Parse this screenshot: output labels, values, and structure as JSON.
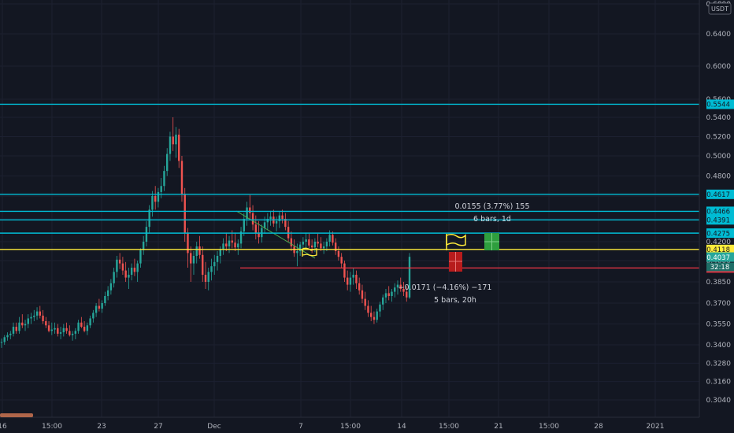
{
  "currency_badge": "USDT",
  "chart_data": {
    "type": "candlestick",
    "y_ticks": [
      0.68,
      0.64,
      0.6,
      0.56,
      0.54,
      0.52,
      0.5,
      0.48,
      0.46,
      0.44,
      0.42,
      0.4,
      0.385,
      0.37,
      0.355,
      0.34,
      0.328,
      0.316,
      0.304
    ],
    "y_tick_labels": [
      "0.6800",
      "0.6400",
      "0.6000",
      "0.5600",
      "0.5400",
      "0.5200",
      "0.5000",
      "0.4800",
      "0.4600",
      "0.4400",
      "0.4200",
      "0.4000",
      "0.3850",
      "0.3700",
      "0.3550",
      "0.3400",
      "0.3280",
      "0.3160",
      "0.3040"
    ],
    "x_ticks": [
      "16",
      "15:00",
      "23",
      "27",
      "Dec",
      "7",
      "15:00",
      "14",
      "15:00",
      "21",
      "15:00",
      "28",
      "2021"
    ],
    "horizontal_levels": [
      {
        "value": 0.5544,
        "label": "0.5544",
        "color": "#00bcd4"
      },
      {
        "value": 0.4617,
        "label": "0.4617",
        "color": "#00bcd4"
      },
      {
        "value": 0.4466,
        "label": "0.4466",
        "color": "#00bcd4"
      },
      {
        "value": 0.4391,
        "label": "0.4391",
        "color": "#00bcd4"
      },
      {
        "value": 0.4275,
        "label": "0.4275",
        "color": "#00bcd4"
      },
      {
        "value": 0.4118,
        "label": "0.4118",
        "color": "#ffeb3b"
      },
      {
        "value": 0.3948,
        "label": "0.3948",
        "color": "#f23645"
      }
    ],
    "current_price": {
      "value": 0.4037,
      "label": "0.4037",
      "countdown": "32:18",
      "color": "#26a69a"
    },
    "annotations": [
      {
        "line1": "0.0155 (3.77%) 155",
        "line2": "6 bars, 1d"
      },
      {
        "line1": "−0.0171 (−4.16%) −171",
        "line2": "5 bars, 20h"
      }
    ],
    "candles": [
      [
        0.3415,
        0.3445,
        0.338,
        0.342
      ],
      [
        0.342,
        0.347,
        0.34,
        0.3455
      ],
      [
        0.3455,
        0.349,
        0.343,
        0.347
      ],
      [
        0.347,
        0.35,
        0.344,
        0.348
      ],
      [
        0.348,
        0.356,
        0.346,
        0.353
      ],
      [
        0.353,
        0.356,
        0.348,
        0.35
      ],
      [
        0.35,
        0.36,
        0.348,
        0.356
      ],
      [
        0.356,
        0.362,
        0.352,
        0.354
      ],
      [
        0.354,
        0.358,
        0.35,
        0.355
      ],
      [
        0.355,
        0.362,
        0.352,
        0.359
      ],
      [
        0.359,
        0.363,
        0.355,
        0.36
      ],
      [
        0.36,
        0.365,
        0.357,
        0.361
      ],
      [
        0.361,
        0.367,
        0.358,
        0.364
      ],
      [
        0.364,
        0.368,
        0.359,
        0.361
      ],
      [
        0.361,
        0.365,
        0.355,
        0.357
      ],
      [
        0.357,
        0.36,
        0.352,
        0.354
      ],
      [
        0.354,
        0.357,
        0.349,
        0.35
      ],
      [
        0.35,
        0.356,
        0.347,
        0.351
      ],
      [
        0.351,
        0.356,
        0.348,
        0.352
      ],
      [
        0.352,
        0.355,
        0.346,
        0.348
      ],
      [
        0.348,
        0.353,
        0.344,
        0.349
      ],
      [
        0.349,
        0.355,
        0.346,
        0.352
      ],
      [
        0.352,
        0.356,
        0.348,
        0.35
      ],
      [
        0.35,
        0.354,
        0.346,
        0.347
      ],
      [
        0.347,
        0.35,
        0.343,
        0.348
      ],
      [
        0.348,
        0.352,
        0.344,
        0.35
      ],
      [
        0.35,
        0.358,
        0.348,
        0.356
      ],
      [
        0.356,
        0.36,
        0.352,
        0.353
      ],
      [
        0.353,
        0.357,
        0.349,
        0.35
      ],
      [
        0.35,
        0.356,
        0.347,
        0.354
      ],
      [
        0.354,
        0.361,
        0.352,
        0.359
      ],
      [
        0.359,
        0.365,
        0.356,
        0.363
      ],
      [
        0.363,
        0.37,
        0.36,
        0.368
      ],
      [
        0.368,
        0.373,
        0.364,
        0.366
      ],
      [
        0.366,
        0.372,
        0.363,
        0.37
      ],
      [
        0.37,
        0.378,
        0.368,
        0.375
      ],
      [
        0.375,
        0.382,
        0.372,
        0.379
      ],
      [
        0.379,
        0.387,
        0.376,
        0.384
      ],
      [
        0.384,
        0.395,
        0.381,
        0.392
      ],
      [
        0.392,
        0.405,
        0.388,
        0.401
      ],
      [
        0.401,
        0.408,
        0.394,
        0.398
      ],
      [
        0.398,
        0.404,
        0.39,
        0.393
      ],
      [
        0.393,
        0.399,
        0.385,
        0.388
      ],
      [
        0.388,
        0.395,
        0.38,
        0.39
      ],
      [
        0.39,
        0.398,
        0.386,
        0.395
      ],
      [
        0.395,
        0.402,
        0.389,
        0.392
      ],
      [
        0.392,
        0.4,
        0.385,
        0.398
      ],
      [
        0.398,
        0.413,
        0.395,
        0.411
      ],
      [
        0.411,
        0.425,
        0.406,
        0.42
      ],
      [
        0.42,
        0.438,
        0.415,
        0.433
      ],
      [
        0.433,
        0.452,
        0.428,
        0.448
      ],
      [
        0.448,
        0.465,
        0.442,
        0.46
      ],
      [
        0.46,
        0.47,
        0.448,
        0.455
      ],
      [
        0.455,
        0.468,
        0.45,
        0.464
      ],
      [
        0.464,
        0.478,
        0.458,
        0.47
      ],
      [
        0.47,
        0.49,
        0.465,
        0.485
      ],
      [
        0.485,
        0.508,
        0.48,
        0.502
      ],
      [
        0.502,
        0.525,
        0.495,
        0.52
      ],
      [
        0.52,
        0.54,
        0.505,
        0.512
      ],
      [
        0.512,
        0.53,
        0.498,
        0.522
      ],
      [
        0.522,
        0.528,
        0.488,
        0.495
      ],
      [
        0.495,
        0.5,
        0.455,
        0.462
      ],
      [
        0.462,
        0.468,
        0.42,
        0.428
      ],
      [
        0.428,
        0.432,
        0.395,
        0.408
      ],
      [
        0.408,
        0.415,
        0.385,
        0.398
      ],
      [
        0.398,
        0.41,
        0.39,
        0.405
      ],
      [
        0.405,
        0.42,
        0.398,
        0.415
      ],
      [
        0.415,
        0.425,
        0.402,
        0.406
      ],
      [
        0.406,
        0.415,
        0.385,
        0.39
      ],
      [
        0.39,
        0.399,
        0.38,
        0.385
      ],
      [
        0.385,
        0.395,
        0.379,
        0.392
      ],
      [
        0.392,
        0.402,
        0.386,
        0.396
      ],
      [
        0.396,
        0.406,
        0.39,
        0.399
      ],
      [
        0.399,
        0.41,
        0.393,
        0.405
      ],
      [
        0.405,
        0.415,
        0.398,
        0.412
      ],
      [
        0.412,
        0.423,
        0.406,
        0.418
      ],
      [
        0.418,
        0.428,
        0.41,
        0.415
      ],
      [
        0.415,
        0.425,
        0.408,
        0.421
      ],
      [
        0.421,
        0.43,
        0.413,
        0.419
      ],
      [
        0.419,
        0.428,
        0.41,
        0.414
      ],
      [
        0.414,
        0.422,
        0.406,
        0.418
      ],
      [
        0.418,
        0.433,
        0.413,
        0.429
      ],
      [
        0.429,
        0.445,
        0.425,
        0.44
      ],
      [
        0.44,
        0.455,
        0.434,
        0.45
      ],
      [
        0.45,
        0.461,
        0.44,
        0.445
      ],
      [
        0.445,
        0.452,
        0.43,
        0.435
      ],
      [
        0.435,
        0.443,
        0.422,
        0.428
      ],
      [
        0.428,
        0.438,
        0.418,
        0.424
      ],
      [
        0.424,
        0.435,
        0.419,
        0.432
      ],
      [
        0.432,
        0.442,
        0.427,
        0.437
      ],
      [
        0.437,
        0.445,
        0.43,
        0.44
      ],
      [
        0.44,
        0.447,
        0.434,
        0.442
      ],
      [
        0.442,
        0.448,
        0.433,
        0.436
      ],
      [
        0.436,
        0.442,
        0.429,
        0.438
      ],
      [
        0.438,
        0.446,
        0.432,
        0.443
      ],
      [
        0.443,
        0.448,
        0.436,
        0.44
      ],
      [
        0.44,
        0.445,
        0.43,
        0.433
      ],
      [
        0.433,
        0.438,
        0.42,
        0.423
      ],
      [
        0.423,
        0.429,
        0.41,
        0.415
      ],
      [
        0.415,
        0.422,
        0.404,
        0.408
      ],
      [
        0.408,
        0.418,
        0.396,
        0.41
      ],
      [
        0.41,
        0.42,
        0.405,
        0.417
      ],
      [
        0.417,
        0.424,
        0.41,
        0.42
      ],
      [
        0.42,
        0.428,
        0.413,
        0.422
      ],
      [
        0.422,
        0.427,
        0.413,
        0.416
      ],
      [
        0.416,
        0.422,
        0.408,
        0.414
      ],
      [
        0.414,
        0.423,
        0.409,
        0.42
      ],
      [
        0.42,
        0.427,
        0.414,
        0.418
      ],
      [
        0.418,
        0.424,
        0.41,
        0.413
      ],
      [
        0.413,
        0.42,
        0.407,
        0.415
      ],
      [
        0.415,
        0.423,
        0.41,
        0.42
      ],
      [
        0.42,
        0.43,
        0.415,
        0.426
      ],
      [
        0.426,
        0.429,
        0.416,
        0.419
      ],
      [
        0.419,
        0.423,
        0.406,
        0.41
      ],
      [
        0.41,
        0.415,
        0.4,
        0.404
      ],
      [
        0.404,
        0.408,
        0.395,
        0.398
      ],
      [
        0.398,
        0.4,
        0.385,
        0.388
      ],
      [
        0.388,
        0.393,
        0.379,
        0.383
      ],
      [
        0.383,
        0.392,
        0.378,
        0.388
      ],
      [
        0.388,
        0.395,
        0.383,
        0.39
      ],
      [
        0.39,
        0.393,
        0.38,
        0.384
      ],
      [
        0.384,
        0.388,
        0.376,
        0.379
      ],
      [
        0.379,
        0.383,
        0.37,
        0.373
      ],
      [
        0.373,
        0.378,
        0.365,
        0.368
      ],
      [
        0.368,
        0.372,
        0.36,
        0.363
      ],
      [
        0.363,
        0.368,
        0.357,
        0.36
      ],
      [
        0.36,
        0.364,
        0.355,
        0.358
      ],
      [
        0.358,
        0.366,
        0.356,
        0.364
      ],
      [
        0.364,
        0.371,
        0.36,
        0.369
      ],
      [
        0.369,
        0.376,
        0.365,
        0.374
      ],
      [
        0.374,
        0.38,
        0.37,
        0.377
      ],
      [
        0.377,
        0.382,
        0.372,
        0.375
      ],
      [
        0.375,
        0.38,
        0.371,
        0.378
      ],
      [
        0.378,
        0.384,
        0.374,
        0.381
      ],
      [
        0.381,
        0.386,
        0.376,
        0.383
      ],
      [
        0.383,
        0.388,
        0.378,
        0.38
      ],
      [
        0.38,
        0.385,
        0.375,
        0.378
      ],
      [
        0.378,
        0.382,
        0.371,
        0.374
      ],
      [
        0.374,
        0.408,
        0.373,
        0.404
      ]
    ]
  }
}
